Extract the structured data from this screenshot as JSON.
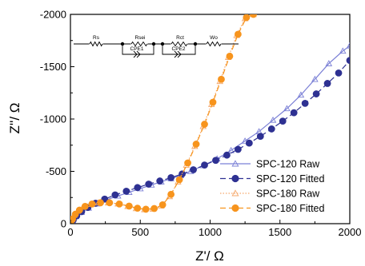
{
  "chart_data": {
    "type": "scatter",
    "title": "",
    "xlabel": "Z'/ Ω",
    "ylabel": "Z''/ Ω",
    "xlim": [
      0,
      2000
    ],
    "ylim": [
      0,
      -2000
    ],
    "y_axis_inverted": true,
    "xticks": [
      "0",
      "500",
      "1000",
      "1500",
      "2000"
    ],
    "yticks": [
      "0",
      "-500",
      "-1000",
      "-1500",
      "-2000"
    ],
    "legend_position": "bottom-right",
    "grid": false,
    "series": [
      {
        "name": "SPC-120 Raw",
        "color": "#7b80d6",
        "marker": "open-triangle",
        "line": "solid",
        "x": [
          0,
          15,
          40,
          80,
          130,
          190,
          260,
          340,
          420,
          500,
          580,
          650,
          720,
          790,
          860,
          950,
          1050,
          1150,
          1250,
          1350,
          1450,
          1550,
          1650,
          1750,
          1850,
          1950,
          2000
        ],
        "y": [
          0,
          -30,
          -70,
          -110,
          -150,
          -190,
          -230,
          -265,
          -300,
          -335,
          -370,
          -400,
          -430,
          -460,
          -500,
          -555,
          -620,
          -700,
          -790,
          -880,
          -990,
          -1100,
          -1230,
          -1380,
          -1530,
          -1650,
          -1700
        ]
      },
      {
        "name": "SPC-120 Fitted",
        "color": "#2e3192",
        "marker": "filled-circle",
        "line": "dashed",
        "x": [
          5,
          20,
          45,
          80,
          125,
          180,
          245,
          320,
          400,
          480,
          560,
          640,
          720,
          800,
          880,
          960,
          1040,
          1120,
          1200,
          1280,
          1360,
          1440,
          1520,
          1600,
          1680,
          1760,
          1840,
          1920,
          2000
        ],
        "y": [
          -5,
          -35,
          -75,
          -115,
          -155,
          -195,
          -235,
          -275,
          -310,
          -345,
          -378,
          -408,
          -440,
          -475,
          -515,
          -560,
          -605,
          -655,
          -710,
          -770,
          -835,
          -905,
          -980,
          -1060,
          -1150,
          -1240,
          -1340,
          -1440,
          -1560
        ]
      },
      {
        "name": "SPC-180 Raw",
        "color": "#f5a86b",
        "marker": "open-triangle",
        "line": "dotted",
        "x": [
          0,
          10,
          25,
          50,
          90,
          140,
          200,
          270,
          340,
          410,
          470,
          530,
          590,
          650,
          710,
          770,
          830,
          890,
          950,
          1010,
          1070,
          1130,
          1190,
          1250,
          1310
        ],
        "y": [
          0,
          -40,
          -80,
          -120,
          -160,
          -185,
          -200,
          -200,
          -190,
          -165,
          -145,
          -135,
          -140,
          -170,
          -260,
          -400,
          -560,
          -740,
          -930,
          -1140,
          -1360,
          -1590,
          -1800,
          -1960,
          -2000
        ]
      },
      {
        "name": "SPC-180 Fitted",
        "color": "#f7941d",
        "marker": "filled-circle",
        "line": "dashed",
        "x": [
          3,
          15,
          35,
          65,
          105,
          155,
          215,
          280,
          350,
          420,
          480,
          540,
          600,
          660,
          720,
          780,
          840,
          900,
          960,
          1020,
          1080,
          1140,
          1200,
          1260,
          1310
        ],
        "y": [
          -5,
          -45,
          -90,
          -130,
          -165,
          -188,
          -200,
          -200,
          -188,
          -168,
          -148,
          -138,
          -145,
          -180,
          -280,
          -420,
          -580,
          -760,
          -950,
          -1160,
          -1380,
          -1600,
          -1810,
          -1970,
          -2000
        ]
      }
    ],
    "inset_circuit": {
      "labels": [
        "Rs",
        "Rsei",
        "CPE1",
        "Rct",
        "CPE2",
        "Wo"
      ]
    }
  }
}
